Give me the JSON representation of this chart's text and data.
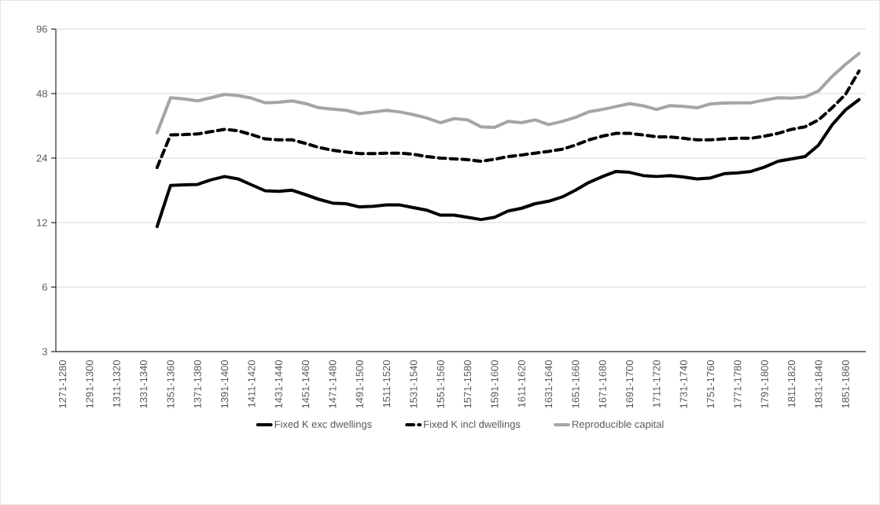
{
  "chart_data": {
    "type": "line",
    "categories": [
      "1271-1280",
      null,
      "1291-1300",
      null,
      "1311-1320",
      null,
      "1331-1340",
      null,
      "1351-1360",
      null,
      "1371-1380",
      null,
      "1391-1400",
      null,
      "1411-1420",
      null,
      "1431-1440",
      null,
      "1451-1460",
      null,
      "1471-1480",
      null,
      "1491-1500",
      null,
      "1511-1520",
      null,
      "1531-1540",
      null,
      "1551-1560",
      null,
      "1571-1580",
      null,
      "1591-1600",
      null,
      "1611-1620",
      null,
      "1631-1640",
      null,
      "1651-1660",
      null,
      "1671-1680",
      null,
      "1691-1700",
      null,
      "1711-1720",
      null,
      "1731-1740",
      null,
      "1751-1760",
      null,
      "1771-1780",
      null,
      "1791-1800",
      null,
      "1811-1820",
      null,
      "1831-1840",
      null,
      "1851-1860",
      null
    ],
    "series": [
      {
        "name": "Fixed K exc dwellings",
        "color": "#000000",
        "line_style": "solid",
        "values": [
          null,
          null,
          null,
          null,
          null,
          null,
          null,
          11.5,
          17.9,
          18.0,
          18.1,
          19.0,
          19.7,
          19.2,
          18.0,
          16.9,
          16.8,
          17.0,
          16.2,
          15.4,
          14.8,
          14.7,
          14.2,
          14.3,
          14.5,
          14.5,
          14.1,
          13.7,
          13.0,
          13.0,
          12.7,
          12.4,
          12.7,
          13.6,
          14.0,
          14.7,
          15.1,
          15.8,
          17.0,
          18.5,
          19.7,
          20.8,
          20.6,
          19.9,
          19.7,
          19.9,
          19.6,
          19.2,
          19.4,
          20.3,
          20.5,
          20.8,
          21.8,
          23.2,
          23.8,
          24.4,
          27.6,
          34.3,
          40.3,
          45.0
        ]
      },
      {
        "name": "Fixed K incl dwellings",
        "color": "#000000",
        "line_style": "dashed",
        "values": [
          null,
          null,
          null,
          null,
          null,
          null,
          null,
          21.7,
          30.8,
          30.9,
          31.1,
          31.9,
          32.7,
          32.2,
          30.9,
          29.5,
          29.2,
          29.2,
          28.1,
          26.9,
          26.1,
          25.6,
          25.2,
          25.2,
          25.3,
          25.3,
          25.0,
          24.4,
          24.0,
          23.8,
          23.6,
          23.2,
          23.7,
          24.4,
          24.8,
          25.3,
          25.8,
          26.4,
          27.6,
          29.2,
          30.4,
          31.3,
          31.3,
          30.8,
          30.2,
          30.1,
          29.7,
          29.2,
          29.2,
          29.5,
          29.7,
          29.7,
          30.4,
          31.3,
          32.7,
          33.6,
          36.2,
          41.2,
          47.6,
          61.2
        ]
      },
      {
        "name": "Reproducible capital",
        "color": "#a5a5a5",
        "line_style": "solid",
        "values": [
          null,
          null,
          null,
          null,
          null,
          null,
          null,
          31.5,
          45.9,
          45.3,
          44.4,
          45.9,
          47.6,
          47.0,
          45.7,
          43.5,
          43.7,
          44.4,
          43.1,
          41.2,
          40.6,
          40.1,
          38.7,
          39.4,
          40.1,
          39.4,
          38.3,
          36.9,
          35.1,
          36.7,
          36.2,
          33.6,
          33.4,
          35.6,
          35.1,
          36.2,
          34.4,
          35.6,
          37.2,
          39.5,
          40.5,
          41.8,
          43.1,
          42.1,
          40.5,
          42.2,
          41.8,
          41.2,
          43.0,
          43.4,
          43.5,
          43.5,
          44.8,
          45.9,
          45.7,
          46.3,
          49.4,
          57.7,
          65.8,
          73.9
        ]
      }
    ],
    "log": "y",
    "ylim": [
      3,
      96
    ],
    "yticks": [
      3,
      6,
      12,
      24,
      48,
      96
    ],
    "grid": "y",
    "legend": "bottom",
    "marker": "none"
  }
}
